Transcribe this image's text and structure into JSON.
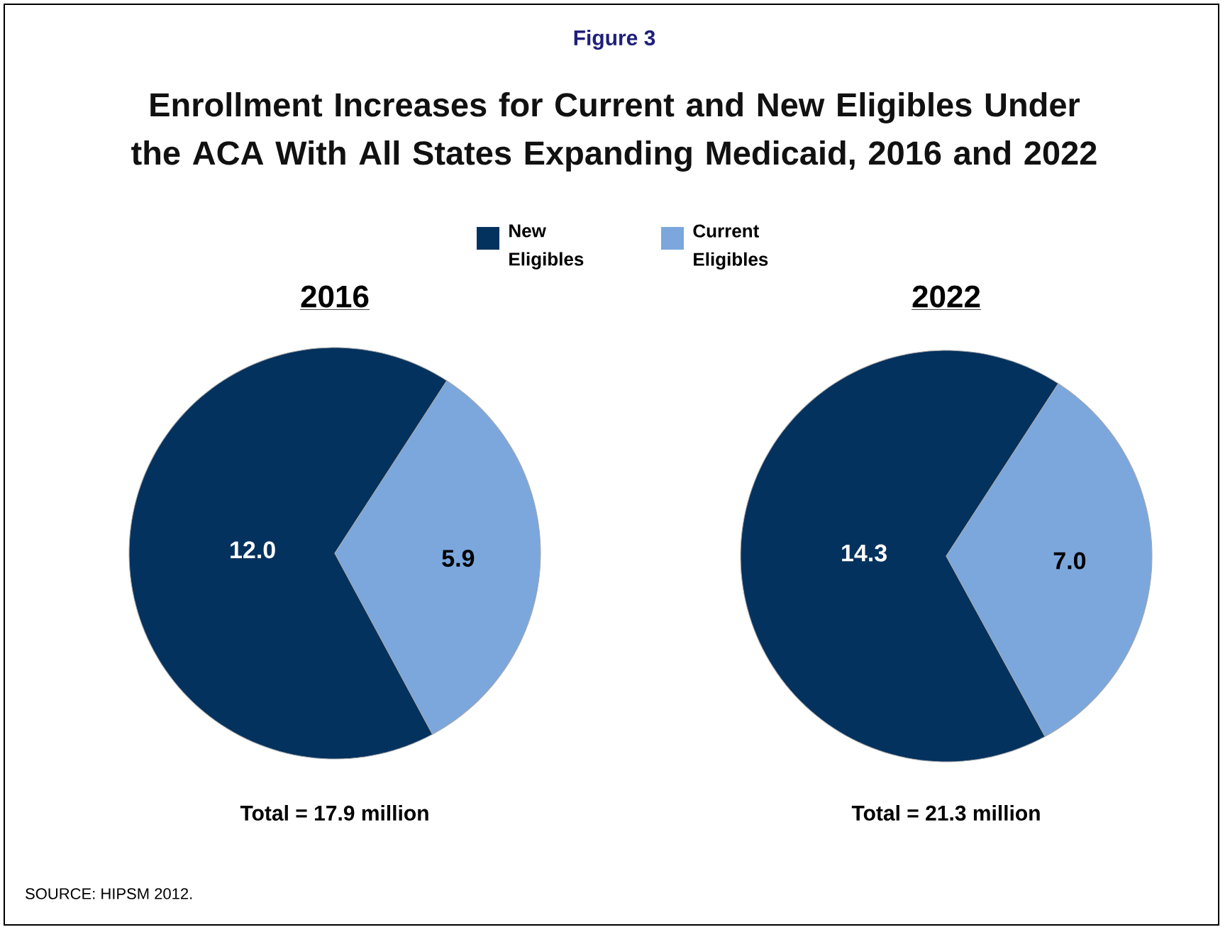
{
  "chart_data": [
    {
      "type": "other",
      "title": "Enrollment Increases for Current and New Eligibles Under the ACA With All States Expanding Medicaid, 2016 and 2022",
      "subtitle": "Figure 3",
      "annotations": [
        "SOURCE: HIPSM 2012."
      ]
    },
    {
      "type": "pie",
      "title": "2016",
      "categories": [
        "New Eligibles",
        "Current Eligibles"
      ],
      "values": [
        12.0,
        5.9
      ],
      "value_labels": [
        "12.0",
        "5.9"
      ],
      "colors": [
        "#04325f",
        "#7ba7dc"
      ],
      "legend": "top",
      "annotations": [
        "Total = 17.9 million"
      ]
    },
    {
      "type": "pie",
      "title": "2022",
      "categories": [
        null,
        null
      ],
      "values": [
        14.3,
        7.0
      ],
      "value_labels": [
        "14.3",
        "7.0"
      ],
      "colors": [
        "#04325f",
        "#7ba7dc"
      ],
      "annotations": [
        "Total = 21.3 million"
      ]
    }
  ]
}
